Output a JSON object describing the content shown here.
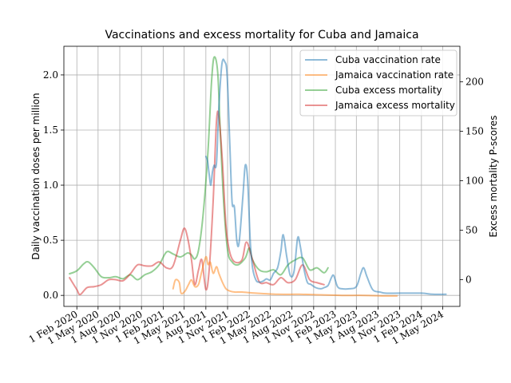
{
  "chart_data": {
    "type": "line",
    "title": "Vaccinations and excess mortality for Cuba and Jamaica",
    "ylabel": "Daily vaccination doses per million",
    "y2label": "Excess mortality P-scores",
    "xlabel": "",
    "x_ticks": [
      "1 Feb 2020",
      "1 May 2020",
      "1 Aug 2020",
      "1 Nov 2020",
      "1 Feb 2021",
      "1 May 2021",
      "1 Aug 2021",
      "1 Nov 2021",
      "1 Feb 2022",
      "1 May 2022",
      "1 Aug 2022",
      "1 Nov 2022",
      "1 Feb 2023",
      "1 May 2023",
      "1 Aug 2023",
      "1 Nov 2023",
      "1 Feb 2024",
      "1 May 2024"
    ],
    "y_ticks": [
      "0.0",
      "0.5",
      "1.0",
      "1.5",
      "2.0"
    ],
    "y2_ticks": [
      "0",
      "50",
      "100",
      "150",
      "200"
    ],
    "xlim": [
      "2019-12-08",
      "2024-07-13"
    ],
    "ylim": [
      -0.1,
      2.26
    ],
    "y2lim": [
      -27,
      236
    ],
    "grid": true,
    "legend_position": "top-right",
    "series": [
      {
        "name": "Cuba vaccination rate",
        "axis": "left",
        "color": "#1f77b4",
        "points": [
          [
            "2021-08-01",
            1.26
          ],
          [
            "2021-08-08",
            1.22
          ],
          [
            "2021-08-15",
            1.1
          ],
          [
            "2021-08-22",
            1.0
          ],
          [
            "2021-08-29",
            1.12
          ],
          [
            "2021-09-05",
            1.18
          ],
          [
            "2021-09-15",
            1.2
          ],
          [
            "2021-09-25",
            1.7
          ],
          [
            "2021-10-08",
            2.1
          ],
          [
            "2021-10-20",
            2.12
          ],
          [
            "2021-10-30",
            2.0
          ],
          [
            "2021-11-10",
            1.4
          ],
          [
            "2021-11-20",
            0.85
          ],
          [
            "2021-11-30",
            0.8
          ],
          [
            "2021-12-10",
            0.5
          ],
          [
            "2021-12-20",
            0.48
          ],
          [
            "2022-01-05",
            0.9
          ],
          [
            "2022-01-15",
            1.18
          ],
          [
            "2022-01-25",
            1.05
          ],
          [
            "2022-02-05",
            0.5
          ],
          [
            "2022-02-15",
            0.25
          ],
          [
            "2022-03-01",
            0.14
          ],
          [
            "2022-03-15",
            0.12
          ],
          [
            "2022-04-01",
            0.13
          ],
          [
            "2022-04-15",
            0.15
          ],
          [
            "2022-05-01",
            0.14
          ],
          [
            "2022-05-15",
            0.2
          ],
          [
            "2022-06-01",
            0.25
          ],
          [
            "2022-06-15",
            0.4
          ],
          [
            "2022-06-25",
            0.55
          ],
          [
            "2022-07-10",
            0.35
          ],
          [
            "2022-07-25",
            0.18
          ],
          [
            "2022-08-10",
            0.22
          ],
          [
            "2022-08-25",
            0.52
          ],
          [
            "2022-09-05",
            0.45
          ],
          [
            "2022-09-20",
            0.25
          ],
          [
            "2022-10-05",
            0.12
          ],
          [
            "2022-10-20",
            0.1
          ],
          [
            "2022-11-10",
            0.07
          ],
          [
            "2022-12-01",
            0.06
          ],
          [
            "2022-12-15",
            0.07
          ],
          [
            "2023-01-01",
            0.09
          ],
          [
            "2023-01-15",
            0.16
          ],
          [
            "2023-01-25",
            0.18
          ],
          [
            "2023-02-10",
            0.08
          ],
          [
            "2023-03-01",
            0.06
          ],
          [
            "2023-04-01",
            0.06
          ],
          [
            "2023-05-01",
            0.08
          ],
          [
            "2023-05-20",
            0.2
          ],
          [
            "2023-06-01",
            0.25
          ],
          [
            "2023-06-15",
            0.17
          ],
          [
            "2023-07-10",
            0.05
          ],
          [
            "2023-08-10",
            0.03
          ],
          [
            "2023-09-01",
            0.02
          ],
          [
            "2023-11-01",
            0.02
          ],
          [
            "2024-02-01",
            0.02
          ],
          [
            "2024-03-20",
            0.01
          ],
          [
            "2024-05-15",
            0.01
          ]
        ]
      },
      {
        "name": "Jamaica vaccination rate",
        "axis": "left",
        "color": "#ff7f0e",
        "points": [
          [
            "2021-03-15",
            0.06
          ],
          [
            "2021-03-25",
            0.14
          ],
          [
            "2021-04-10",
            0.12
          ],
          [
            "2021-04-18",
            0.02
          ],
          [
            "2021-05-05",
            0.04
          ],
          [
            "2021-05-20",
            0.1
          ],
          [
            "2021-06-01",
            0.14
          ],
          [
            "2021-06-15",
            0.08
          ],
          [
            "2021-07-01",
            0.1
          ],
          [
            "2021-07-15",
            0.22
          ],
          [
            "2021-08-01",
            0.35
          ],
          [
            "2021-08-10",
            0.28
          ],
          [
            "2021-08-20",
            0.3
          ],
          [
            "2021-09-01",
            0.2
          ],
          [
            "2021-09-15",
            0.26
          ],
          [
            "2021-09-25",
            0.2
          ],
          [
            "2021-10-10",
            0.12
          ],
          [
            "2021-10-25",
            0.06
          ],
          [
            "2021-11-10",
            0.04
          ],
          [
            "2021-12-01",
            0.03
          ],
          [
            "2022-01-01",
            0.03
          ],
          [
            "2022-03-01",
            0.02
          ],
          [
            "2022-06-01",
            0.01
          ],
          [
            "2022-09-01",
            0.01
          ],
          [
            "2022-12-01",
            0.005
          ],
          [
            "2023-03-01",
            0.0
          ],
          [
            "2023-06-01",
            0.0
          ],
          [
            "2023-09-01",
            -0.005
          ],
          [
            "2023-10-20",
            -0.005
          ]
        ]
      },
      {
        "name": "Cuba excess mortality",
        "axis": "right",
        "color": "#2ca02c",
        "points": [
          [
            "2020-01-01",
            6
          ],
          [
            "2020-02-01",
            9
          ],
          [
            "2020-03-01",
            16
          ],
          [
            "2020-03-20",
            18
          ],
          [
            "2020-04-15",
            12
          ],
          [
            "2020-05-15",
            3
          ],
          [
            "2020-06-15",
            2
          ],
          [
            "2020-07-15",
            3
          ],
          [
            "2020-08-15",
            1
          ],
          [
            "2020-09-15",
            5
          ],
          [
            "2020-10-15",
            0
          ],
          [
            "2020-11-15",
            5
          ],
          [
            "2020-12-15",
            8
          ],
          [
            "2021-01-15",
            15
          ],
          [
            "2021-02-15",
            28
          ],
          [
            "2021-03-15",
            26
          ],
          [
            "2021-04-15",
            23
          ],
          [
            "2021-05-15",
            27
          ],
          [
            "2021-06-01",
            25
          ],
          [
            "2021-06-15",
            21
          ],
          [
            "2021-07-01",
            30
          ],
          [
            "2021-07-20",
            65
          ],
          [
            "2021-08-10",
            130
          ],
          [
            "2021-08-25",
            200
          ],
          [
            "2021-09-05",
            225
          ],
          [
            "2021-09-20",
            210
          ],
          [
            "2021-10-01",
            150
          ],
          [
            "2021-10-15",
            80
          ],
          [
            "2021-11-01",
            30
          ],
          [
            "2021-11-20",
            18
          ],
          [
            "2021-12-15",
            15
          ],
          [
            "2022-01-15",
            22
          ],
          [
            "2022-02-01",
            32
          ],
          [
            "2022-02-15",
            20
          ],
          [
            "2022-03-15",
            10
          ],
          [
            "2022-04-15",
            8
          ],
          [
            "2022-05-15",
            10
          ],
          [
            "2022-06-15",
            5
          ],
          [
            "2022-07-15",
            15
          ],
          [
            "2022-08-15",
            20
          ],
          [
            "2022-09-15",
            22
          ],
          [
            "2022-10-15",
            10
          ],
          [
            "2022-11-15",
            12
          ],
          [
            "2022-12-15",
            7
          ],
          [
            "2023-01-01",
            12
          ]
        ]
      },
      {
        "name": "Jamaica excess mortality",
        "axis": "right",
        "color": "#d62728",
        "points": [
          [
            "2020-01-01",
            2
          ],
          [
            "2020-02-01",
            -10
          ],
          [
            "2020-02-15",
            -15
          ],
          [
            "2020-03-15",
            -8
          ],
          [
            "2020-04-15",
            -7
          ],
          [
            "2020-05-15",
            -5
          ],
          [
            "2020-06-15",
            0
          ],
          [
            "2020-07-15",
            0
          ],
          [
            "2020-08-15",
            -1
          ],
          [
            "2020-09-15",
            6
          ],
          [
            "2020-10-15",
            15
          ],
          [
            "2020-11-15",
            14
          ],
          [
            "2020-12-15",
            14
          ],
          [
            "2021-01-15",
            18
          ],
          [
            "2021-02-15",
            12
          ],
          [
            "2021-03-15",
            14
          ],
          [
            "2021-04-15",
            40
          ],
          [
            "2021-05-01",
            52
          ],
          [
            "2021-05-15",
            43
          ],
          [
            "2021-06-01",
            20
          ],
          [
            "2021-06-15",
            -5
          ],
          [
            "2021-07-01",
            10
          ],
          [
            "2021-07-15",
            20
          ],
          [
            "2021-08-01",
            -10
          ],
          [
            "2021-08-15",
            10
          ],
          [
            "2021-09-01",
            80
          ],
          [
            "2021-09-15",
            160
          ],
          [
            "2021-09-25",
            165
          ],
          [
            "2021-10-10",
            120
          ],
          [
            "2021-10-25",
            55
          ],
          [
            "2021-11-10",
            28
          ],
          [
            "2021-12-01",
            18
          ],
          [
            "2022-01-01",
            20
          ],
          [
            "2022-01-20",
            38
          ],
          [
            "2022-02-15",
            20
          ],
          [
            "2022-03-15",
            -2
          ],
          [
            "2022-04-15",
            -3
          ],
          [
            "2022-05-15",
            -5
          ],
          [
            "2022-06-15",
            2
          ],
          [
            "2022-07-15",
            -3
          ],
          [
            "2022-08-15",
            0
          ],
          [
            "2022-09-15",
            15
          ],
          [
            "2022-10-15",
            0
          ],
          [
            "2022-11-15",
            -3
          ],
          [
            "2022-12-15",
            -5
          ]
        ]
      }
    ]
  }
}
